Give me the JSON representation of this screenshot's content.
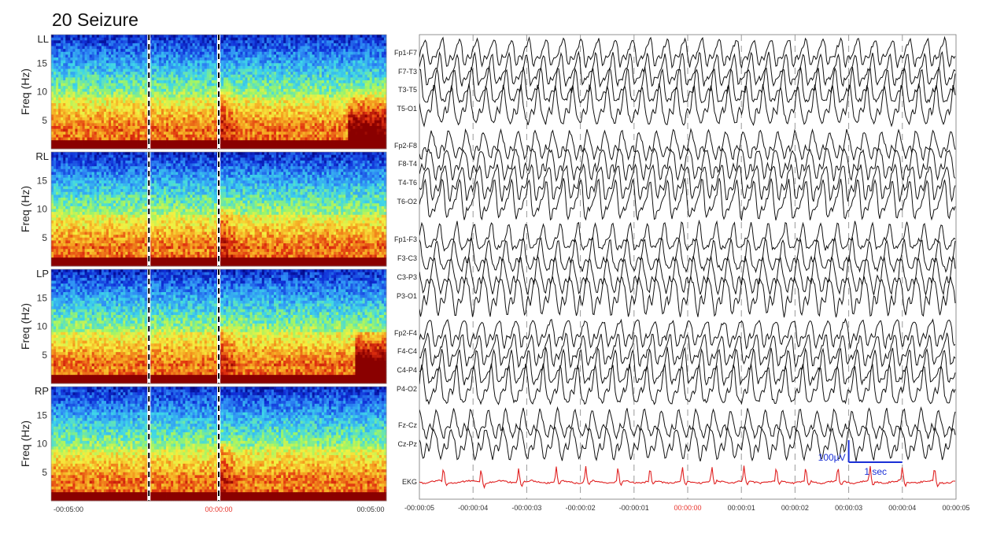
{
  "title": "20 Seizure",
  "chart_data": [
    {
      "type": "heatmap",
      "name": "spectrogram",
      "panels": [
        "LL",
        "RL",
        "LP",
        "RP"
      ],
      "ylabel": "Freq (Hz)",
      "yticks": [
        5,
        10,
        15
      ],
      "ylim": [
        0,
        20
      ],
      "xticks": [
        "-00:05:00",
        "00:00:00",
        "00:05:00"
      ],
      "xlim": [
        -300,
        300
      ],
      "highlight_tick": "00:00:00",
      "colormap": [
        "#00007a",
        "#1030d8",
        "#2f8ef5",
        "#3fd7e8",
        "#9af56a",
        "#f5f040",
        "#f5a020",
        "#e03010",
        "#8a0000"
      ],
      "markers": [
        {
          "t": -125,
          "style": "dashed-white-black"
        },
        {
          "t": 0,
          "style": "dashed-white-black"
        }
      ]
    },
    {
      "type": "line",
      "name": "eeg",
      "channels": [
        "Fp1-F7",
        "F7-T3",
        "T3-T5",
        "T5-O1",
        "Fp2-F8",
        "F8-T4",
        "T4-T6",
        "T6-O2",
        "Fp1-F3",
        "F3-C3",
        "C3-P3",
        "P3-O1",
        "Fp2-F4",
        "F4-C4",
        "C4-P4",
        "P4-O2",
        "Fz-Cz",
        "Cz-Pz",
        "EKG"
      ],
      "xticks": [
        "-00:00:05",
        "-00:00:04",
        "-00:00:03",
        "-00:00:02",
        "-00:00:01",
        "00:00:00",
        "00:00:01",
        "00:00:02",
        "00:00:03",
        "00:00:04",
        "00:00:05"
      ],
      "xlim": [
        -5,
        5
      ],
      "highlight_tick": "00:00:00",
      "trace_color": "#111111",
      "ekg_color": "#e02020",
      "grid": "dashed vertical every 1 sec",
      "scale_bar": {
        "amplitude": "100µV",
        "time": "1 sec",
        "color": "#1a2fd6"
      },
      "ekg_beat_times": [
        -4.55,
        -3.85,
        -3.15,
        -2.45,
        -1.9,
        -1.3,
        -0.7,
        -0.1,
        0.45,
        1.05,
        1.65,
        2.2,
        2.8,
        3.4,
        4.0,
        4.6
      ]
    }
  ]
}
